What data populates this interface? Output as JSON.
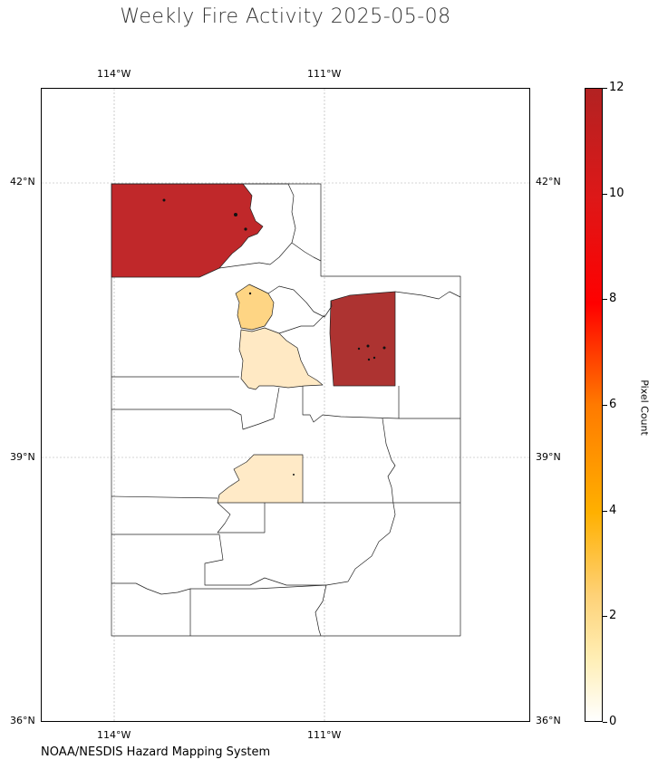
{
  "title": "Weekly Fire Activity 2025-05-08",
  "credit": "NOAA/NESDIS Hazard Mapping System",
  "map": {
    "region": "Utah counties",
    "lon_range": [
      -115.5,
      -106.5
    ],
    "lat_range": [
      36.0,
      43.0
    ],
    "graticule": true,
    "top_lon_labels": [
      "114°W",
      "111°W"
    ],
    "bottom_lon_labels": [
      "114°W",
      "111°W"
    ],
    "left_lat_labels": [
      "42°N",
      "39°N",
      "36°N"
    ],
    "right_lat_labels": [
      "42°N",
      "39°N",
      "36°N"
    ],
    "colors": {
      "box_elder": "#c0282a",
      "uintah_duchesne": "#ad3331",
      "davis_salt_lake": "#fed584",
      "utah_county": "#ffe9c4",
      "sanpete": "#ffeac7"
    }
  },
  "colorbar": {
    "label": "Pixel Count",
    "min": 0,
    "max": 12,
    "ticks": [
      "0",
      "2",
      "4",
      "6",
      "8",
      "10",
      "12"
    ],
    "colormap": [
      "#ffffff",
      "#ffeeb4",
      "#fed176",
      "#ffb000",
      "#ff7a00",
      "#ff0000",
      "#dd1818",
      "#b22222"
    ]
  }
}
